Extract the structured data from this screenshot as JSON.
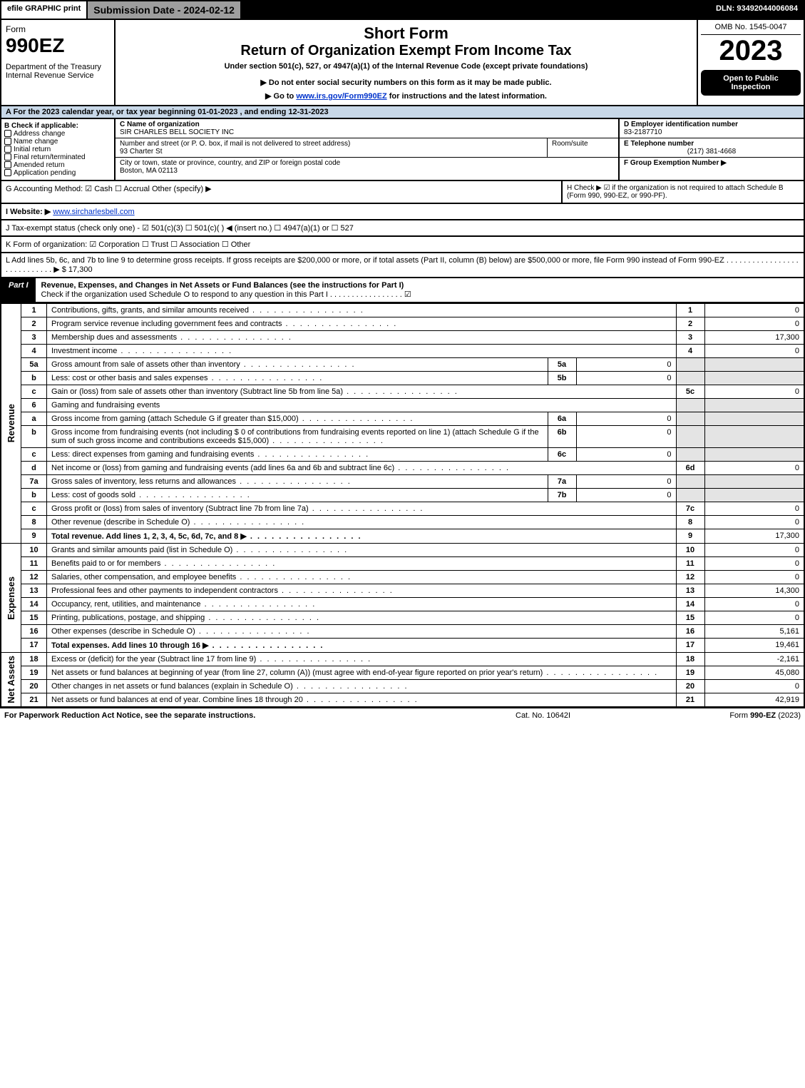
{
  "topbar": {
    "efile": "efile GRAPHIC print",
    "subdate": "Submission Date - 2024-02-12",
    "dln": "DLN: 93492044006084"
  },
  "header": {
    "form_label": "Form",
    "form_num": "990EZ",
    "dept": "Department of the Treasury\nInternal Revenue Service",
    "title1": "Short Form",
    "title2": "Return of Organization Exempt From Income Tax",
    "subtitle": "Under section 501(c), 527, or 4947(a)(1) of the Internal Revenue Code (except private foundations)",
    "note1": "▶ Do not enter social security numbers on this form as it may be made public.",
    "note2": "▶ Go to www.irs.gov/Form990EZ for instructions and the latest information.",
    "omb": "OMB No. 1545-0047",
    "year": "2023",
    "open_box": "Open to Public Inspection"
  },
  "row_a": "A  For the 2023 calendar year, or tax year beginning 01-01-2023 , and ending 12-31-2023",
  "section_b": {
    "b_label": "B  Check if applicable:",
    "b_opts": [
      "Address change",
      "Name change",
      "Initial return",
      "Final return/terminated",
      "Amended return",
      "Application pending"
    ],
    "c_lbl": "C Name of organization",
    "c_name": "SIR CHARLES BELL SOCIETY INC",
    "addr_lbl": "Number and street (or P. O. box, if mail is not delivered to street address)",
    "addr": "93 Charter St",
    "room_lbl": "Room/suite",
    "city_lbl": "City or town, state or province, country, and ZIP or foreign postal code",
    "city": "Boston, MA  02113",
    "d_lbl": "D Employer identification number",
    "d_val": "83-2187710",
    "e_lbl": "E Telephone number",
    "e_val": "(217) 381-4668",
    "f_lbl": "F Group Exemption Number   ▶"
  },
  "row_g": {
    "g": "G Accounting Method:  ☑ Cash  ☐ Accrual  Other (specify) ▶",
    "h": "H  Check ▶ ☑ if the organization is not required to attach Schedule B (Form 990, 990-EZ, or 990-PF)."
  },
  "row_i": "I Website: ▶ www.sircharlesbell.com",
  "row_j": "J Tax-exempt status (check only one) - ☑ 501(c)(3) ☐ 501(c)(  ) ◀ (insert no.) ☐ 4947(a)(1) or ☐ 527",
  "row_k": "K Form of organization:  ☑ Corporation  ☐ Trust  ☐ Association  ☐ Other",
  "row_l": "L Add lines 5b, 6c, and 7b to line 9 to determine gross receipts. If gross receipts are $200,000 or more, or if total assets (Part II, column (B) below) are $500,000 or more, file Form 990 instead of Form 990-EZ  .  .  .  .  .  .  .  .  .  .  .  .  .  .  .  .  .  .  .  .  .  .  .  .  .  .  .  .  ▶ $ 17,300",
  "part1": {
    "badge": "Part I",
    "title": "Revenue, Expenses, and Changes in Net Assets or Fund Balances (see the instructions for Part I)",
    "check": "Check if the organization used Schedule O to respond to any question in this Part I  .  .  .  .  .  .  .  .  .  .  .  .  .  .  .  .  .  ☑"
  },
  "sections": {
    "revenue": "Revenue",
    "expenses": "Expenses",
    "netassets": "Net Assets"
  },
  "lines": [
    {
      "n": "1",
      "desc": "Contributions, gifts, grants, and similar amounts received",
      "rn": "1",
      "amt": "0"
    },
    {
      "n": "2",
      "desc": "Program service revenue including government fees and contracts",
      "rn": "2",
      "amt": "0"
    },
    {
      "n": "3",
      "desc": "Membership dues and assessments",
      "rn": "3",
      "amt": "17,300"
    },
    {
      "n": "4",
      "desc": "Investment income",
      "rn": "4",
      "amt": "0"
    },
    {
      "n": "5a",
      "desc": "Gross amount from sale of assets other than inventory",
      "sub": "5a",
      "subamt": "0",
      "grey": true
    },
    {
      "n": "b",
      "desc": "Less: cost or other basis and sales expenses",
      "sub": "5b",
      "subamt": "0",
      "grey": true
    },
    {
      "n": "c",
      "desc": "Gain or (loss) from sale of assets other than inventory (Subtract line 5b from line 5a)",
      "rn": "5c",
      "amt": "0"
    },
    {
      "n": "6",
      "desc": "Gaming and fundraising events",
      "grey": true,
      "noamt": true
    },
    {
      "n": "a",
      "desc": "Gross income from gaming (attach Schedule G if greater than $15,000)",
      "sub": "6a",
      "subamt": "0",
      "grey": true
    },
    {
      "n": "b",
      "desc": "Gross income from fundraising events (not including $ 0 of contributions from fundraising events reported on line 1) (attach Schedule G if the sum of such gross income and contributions exceeds $15,000)",
      "sub": "6b",
      "subamt": "0",
      "grey": true
    },
    {
      "n": "c",
      "desc": "Less: direct expenses from gaming and fundraising events",
      "sub": "6c",
      "subamt": "0",
      "grey": true
    },
    {
      "n": "d",
      "desc": "Net income or (loss) from gaming and fundraising events (add lines 6a and 6b and subtract line 6c)",
      "rn": "6d",
      "amt": "0"
    },
    {
      "n": "7a",
      "desc": "Gross sales of inventory, less returns and allowances",
      "sub": "7a",
      "subamt": "0",
      "grey": true
    },
    {
      "n": "b",
      "desc": "Less: cost of goods sold",
      "sub": "7b",
      "subamt": "0",
      "grey": true
    },
    {
      "n": "c",
      "desc": "Gross profit or (loss) from sales of inventory (Subtract line 7b from line 7a)",
      "rn": "7c",
      "amt": "0"
    },
    {
      "n": "8",
      "desc": "Other revenue (describe in Schedule O)",
      "rn": "8",
      "amt": "0"
    },
    {
      "n": "9",
      "desc": "Total revenue. Add lines 1, 2, 3, 4, 5c, 6d, 7c, and 8   ▶",
      "rn": "9",
      "amt": "17,300",
      "bold": true
    }
  ],
  "exp_lines": [
    {
      "n": "10",
      "desc": "Grants and similar amounts paid (list in Schedule O)",
      "rn": "10",
      "amt": "0"
    },
    {
      "n": "11",
      "desc": "Benefits paid to or for members",
      "rn": "11",
      "amt": "0"
    },
    {
      "n": "12",
      "desc": "Salaries, other compensation, and employee benefits",
      "rn": "12",
      "amt": "0"
    },
    {
      "n": "13",
      "desc": "Professional fees and other payments to independent contractors",
      "rn": "13",
      "amt": "14,300"
    },
    {
      "n": "14",
      "desc": "Occupancy, rent, utilities, and maintenance",
      "rn": "14",
      "amt": "0"
    },
    {
      "n": "15",
      "desc": "Printing, publications, postage, and shipping",
      "rn": "15",
      "amt": "0"
    },
    {
      "n": "16",
      "desc": "Other expenses (describe in Schedule O)",
      "rn": "16",
      "amt": "5,161"
    },
    {
      "n": "17",
      "desc": "Total expenses. Add lines 10 through 16   ▶",
      "rn": "17",
      "amt": "19,461",
      "bold": true
    }
  ],
  "na_lines": [
    {
      "n": "18",
      "desc": "Excess or (deficit) for the year (Subtract line 17 from line 9)",
      "rn": "18",
      "amt": "-2,161"
    },
    {
      "n": "19",
      "desc": "Net assets or fund balances at beginning of year (from line 27, column (A)) (must agree with end-of-year figure reported on prior year's return)",
      "rn": "19",
      "amt": "45,080"
    },
    {
      "n": "20",
      "desc": "Other changes in net assets or fund balances (explain in Schedule O)",
      "rn": "20",
      "amt": "0"
    },
    {
      "n": "21",
      "desc": "Net assets or fund balances at end of year. Combine lines 18 through 20",
      "rn": "21",
      "amt": "42,919"
    }
  ],
  "footer": {
    "l": "For Paperwork Reduction Act Notice, see the separate instructions.",
    "m": "Cat. No. 10642I",
    "r": "Form 990-EZ (2023)"
  }
}
